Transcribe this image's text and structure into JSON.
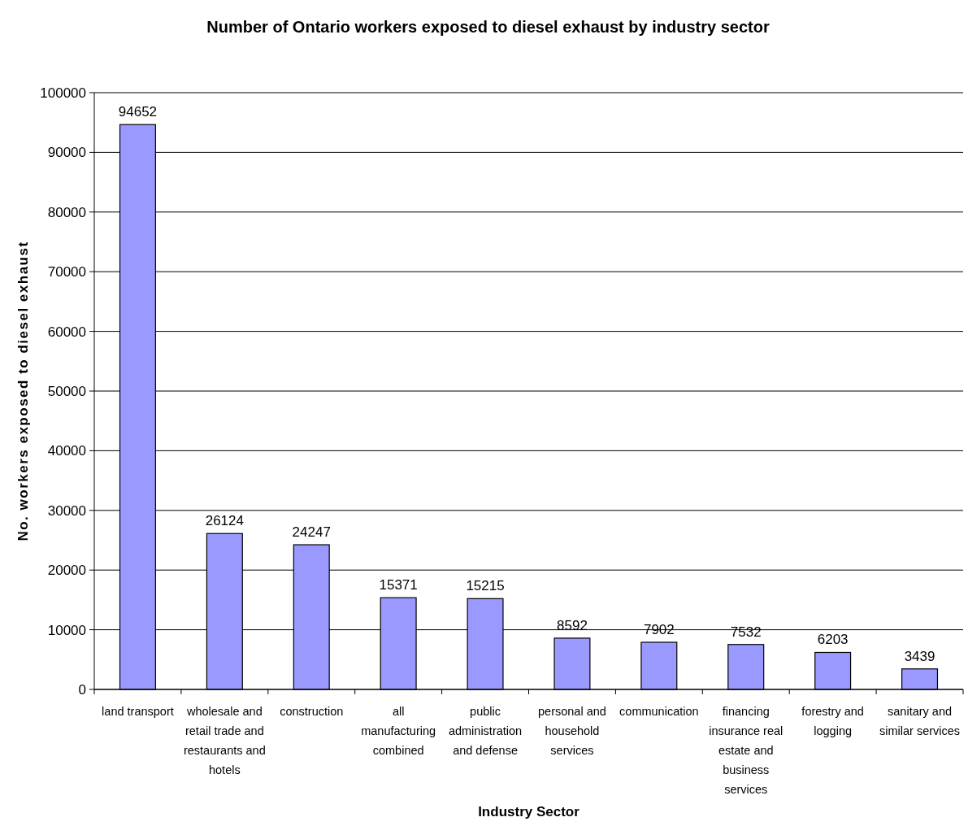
{
  "chart_data": {
    "type": "bar",
    "title": "Number of Ontario workers exposed to diesel exhaust by industry sector",
    "xlabel": "Industry Sector",
    "ylabel": "No. workers exposed to diesel exhaust",
    "categories": [
      "land transport",
      "wholesale and retail trade and restaurants and hotels",
      "construction",
      "all manufacturing combined",
      "public administration and defense",
      "personal and household services",
      "communication",
      "financing insurance real estate and business services",
      "forestry and logging",
      "sanitary and similar services"
    ],
    "values": [
      94652,
      26124,
      24247,
      15371,
      15215,
      8592,
      7902,
      7532,
      6203,
      3439
    ],
    "color": "#9999ff",
    "ylim": [
      0,
      100000
    ],
    "yticks": [
      0,
      10000,
      20000,
      30000,
      40000,
      50000,
      60000,
      70000,
      80000,
      90000,
      100000
    ],
    "grid": "y",
    "data_labels": true
  }
}
